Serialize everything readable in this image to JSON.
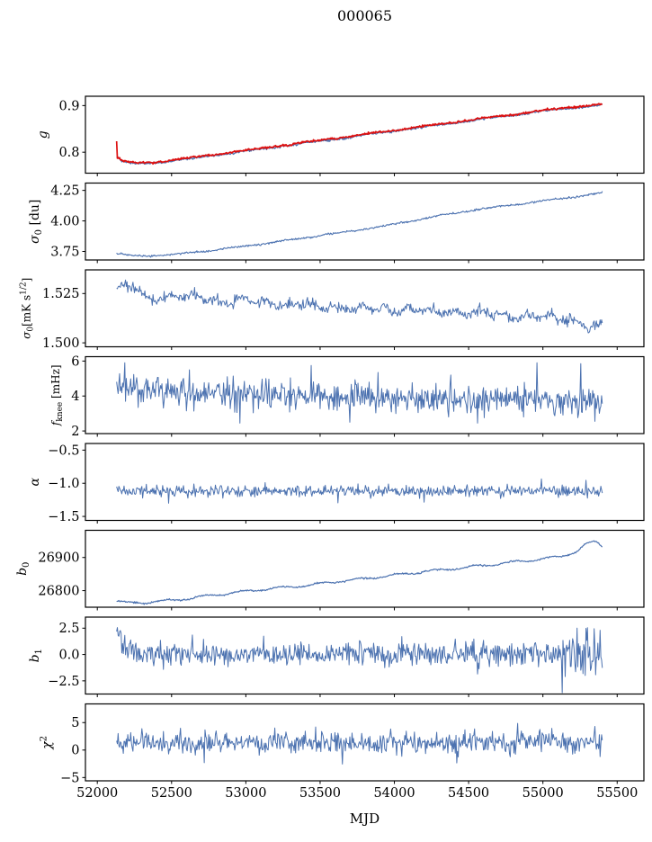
{
  "chart_data": {
    "type": "line",
    "title": "000065",
    "xlabel": "MJD",
    "xlim": [
      51920,
      55680
    ],
    "x_data_range": [
      52130,
      55400
    ],
    "x_ticks": [
      {
        "v": 52000,
        "l": "52000"
      },
      {
        "v": 52500,
        "l": "52500"
      },
      {
        "v": 53000,
        "l": "53000"
      },
      {
        "v": 53500,
        "l": "53500"
      },
      {
        "v": 54000,
        "l": "54000"
      },
      {
        "v": 54500,
        "l": "54500"
      },
      {
        "v": 55000,
        "l": "55000"
      },
      {
        "v": 55500,
        "l": "55500"
      }
    ],
    "colors": {
      "line": "#4c72b0",
      "overlay": "#dd1010",
      "axis": "#000000"
    },
    "panels": [
      {
        "name": "g",
        "ylabel": [
          {
            "t": "g",
            "i": true
          }
        ],
        "ylim": [
          0.755,
          0.92
        ],
        "yticks": [
          {
            "v": 0.8,
            "l": "0.8"
          },
          {
            "v": 0.9,
            "l": "0.9"
          }
        ],
        "series": [
          {
            "color": "line",
            "width": 1.3,
            "noise_std": 0.0012,
            "offset": -0.0008,
            "wave": {
              "amp": 0.0008,
              "period": 400
            },
            "trend": [
              [
                52130,
                0.7905
              ],
              [
                52170,
                0.78
              ],
              [
                52260,
                0.7758
              ],
              [
                52400,
                0.7778
              ],
              [
                52600,
                0.786
              ],
              [
                52900,
                0.799
              ],
              [
                53200,
                0.8118
              ],
              [
                53500,
                0.8246
              ],
              [
                53800,
                0.8376
              ],
              [
                54100,
                0.8505
              ],
              [
                54400,
                0.8633
              ],
              [
                54700,
                0.8762
              ],
              [
                55000,
                0.889
              ],
              [
                55200,
                0.896
              ],
              [
                55400,
                0.902
              ]
            ]
          },
          {
            "color": "overlay",
            "width": 1.7,
            "noise_std": 0.0011,
            "offset": 0.0008,
            "wave": {
              "amp": 0.0008,
              "period": 400
            },
            "spikes": [
              [
                52130,
                0.8235
              ],
              [
                52136,
                0.787
              ]
            ],
            "trend": [
              [
                52130,
                0.7905
              ],
              [
                52170,
                0.78
              ],
              [
                52260,
                0.7758
              ],
              [
                52400,
                0.7778
              ],
              [
                52600,
                0.786
              ],
              [
                52900,
                0.799
              ],
              [
                53200,
                0.8118
              ],
              [
                53500,
                0.8246
              ],
              [
                53800,
                0.8376
              ],
              [
                54100,
                0.8505
              ],
              [
                54400,
                0.8633
              ],
              [
                54700,
                0.8762
              ],
              [
                55000,
                0.889
              ],
              [
                55200,
                0.896
              ],
              [
                55400,
                0.902
              ]
            ]
          }
        ]
      },
      {
        "name": "sigma0_du",
        "ylabel": [
          {
            "t": "σ",
            "i": true
          },
          {
            "t": "0",
            "sub": true
          },
          {
            "t": " [du]"
          }
        ],
        "ylim": [
          3.68,
          4.31
        ],
        "yticks": [
          {
            "v": 3.75,
            "l": "3.75"
          },
          {
            "v": 4.0,
            "l": "4.00"
          },
          {
            "v": 4.25,
            "l": "4.25"
          }
        ],
        "series": [
          {
            "color": "line",
            "width": 1.1,
            "noise_std": 0.004,
            "wave": {
              "amp": 0.003,
              "period": 350
            },
            "trend": [
              [
                52130,
                3.733
              ],
              [
                52200,
                3.719
              ],
              [
                52330,
                3.7135
              ],
              [
                52500,
                3.7235
              ],
              [
                52800,
                3.7625
              ],
              [
                53100,
                3.8105
              ],
              [
                53400,
                3.8625
              ],
              [
                53700,
                3.9155
              ],
              [
                54000,
                3.9725
              ],
              [
                54300,
                4.043
              ],
              [
                54600,
                4.1
              ],
              [
                54900,
                4.148
              ],
              [
                55150,
                4.188
              ],
              [
                55300,
                4.211
              ],
              [
                55400,
                4.23
              ]
            ]
          }
        ]
      },
      {
        "name": "sigma0_mK",
        "ylabel": [
          {
            "t": "σ",
            "i": true
          },
          {
            "t": "0",
            "sub": true
          },
          {
            "t": "[mK s"
          },
          {
            "t": "1/2",
            "sup": true
          },
          {
            "t": "]"
          }
        ],
        "ylim": [
          1.498,
          1.537
        ],
        "yticks": [
          {
            "v": 1.5,
            "l": "1.500"
          },
          {
            "v": 1.525,
            "l": "1.525"
          }
        ],
        "series": [
          {
            "color": "line",
            "width": 1.0,
            "noise_std": 0.0013,
            "wave": {
              "amp": 0.0012,
              "period": 160
            },
            "trend": [
              [
                52130,
                1.527
              ],
              [
                52200,
                1.5288
              ],
              [
                52270,
                1.5282
              ],
              [
                52330,
                1.5222
              ],
              [
                52480,
                1.523
              ],
              [
                52650,
                1.5242
              ],
              [
                52830,
                1.52
              ],
              [
                53000,
                1.5222
              ],
              [
                53200,
                1.5192
              ],
              [
                53400,
                1.52
              ],
              [
                53600,
                1.517
              ],
              [
                53800,
                1.5182
              ],
              [
                54000,
                1.5158
              ],
              [
                54200,
                1.5172
              ],
              [
                54400,
                1.5148
              ],
              [
                54600,
                1.5158
              ],
              [
                54800,
                1.5128
              ],
              [
                55000,
                1.514
              ],
              [
                55150,
                1.5118
              ],
              [
                55280,
                1.5088
              ],
              [
                55350,
                1.5072
              ],
              [
                55400,
                1.509
              ]
            ]
          }
        ]
      },
      {
        "name": "f_knee",
        "ylabel": [
          {
            "t": "f",
            "i": true
          },
          {
            "t": "knee",
            "sub": true
          },
          {
            "t": " [mHz]"
          }
        ],
        "ylim": [
          1.85,
          6.25
        ],
        "yticks": [
          {
            "v": 2,
            "l": "2"
          },
          {
            "v": 4,
            "l": "4"
          },
          {
            "v": 6,
            "l": "6"
          }
        ],
        "series": [
          {
            "color": "line",
            "width": 1.0,
            "noise_std": 0.4,
            "spikes": [
              [
                52185,
                5.9
              ],
              [
                52620,
                5.5
              ],
              [
                53440,
                5.75
              ],
              [
                53890,
                5.35
              ],
              [
                54380,
                5.2
              ],
              [
                54960,
                5.9
              ],
              [
                55255,
                5.85
              ],
              [
                52960,
                2.45
              ],
              [
                53700,
                2.5
              ],
              [
                54560,
                2.45
              ],
              [
                55350,
                2.55
              ]
            ],
            "trend": [
              [
                52130,
                4.42
              ],
              [
                52500,
                4.22
              ],
              [
                53000,
                4.08
              ],
              [
                53500,
                3.95
              ],
              [
                54000,
                3.86
              ],
              [
                54500,
                3.8
              ],
              [
                55000,
                3.72
              ],
              [
                55400,
                3.62
              ]
            ]
          }
        ]
      },
      {
        "name": "alpha",
        "ylabel": [
          {
            "t": "α",
            "i": true
          }
        ],
        "ylim": [
          -1.56,
          -0.4
        ],
        "yticks": [
          {
            "v": -1.5,
            "l": "−1.5"
          },
          {
            "v": -1.0,
            "l": "−1.0"
          },
          {
            "v": -0.5,
            "l": "−0.5"
          }
        ],
        "series": [
          {
            "color": "line",
            "width": 1.0,
            "noise_std": 0.042,
            "spikes": [
              [
                52480,
                -1.3
              ],
              [
                53620,
                -1.295
              ],
              [
                54200,
                -1.285
              ],
              [
                54990,
                -0.935
              ],
              [
                55290,
                -0.955
              ],
              [
                53130,
                -0.99
              ]
            ],
            "trend": [
              [
                52130,
                -1.113
              ],
              [
                55400,
                -1.124
              ]
            ]
          }
        ]
      },
      {
        "name": "b0",
        "ylabel": [
          {
            "t": "b",
            "i": true
          },
          {
            "t": "0",
            "sub": true
          }
        ],
        "ylim": [
          26750,
          26982
        ],
        "yticks": [
          {
            "v": 26800,
            "l": "26800"
          },
          {
            "v": 26900,
            "l": "26900"
          }
        ],
        "series": [
          {
            "color": "line",
            "width": 1.2,
            "noise_std": 1.2,
            "wave": {
              "amp": 3,
              "period": 260
            },
            "trend": [
              [
                52130,
                26769
              ],
              [
                52200,
                26763
              ],
              [
                52360,
                26765
              ],
              [
                52550,
                26773
              ],
              [
                52800,
                26787
              ],
              [
                53000,
                26798
              ],
              [
                53180,
                26807
              ],
              [
                53400,
                26815
              ],
              [
                53600,
                26827
              ],
              [
                53800,
                26836
              ],
              [
                54000,
                26847
              ],
              [
                54200,
                26857
              ],
              [
                54400,
                26866
              ],
              [
                54600,
                26876
              ],
              [
                54800,
                26886
              ],
              [
                55000,
                26896
              ],
              [
                55120,
                26903
              ],
              [
                55220,
                26917
              ],
              [
                55290,
                26940
              ],
              [
                55340,
                26947
              ],
              [
                55370,
                26944
              ],
              [
                55400,
                26934
              ]
            ]
          }
        ]
      },
      {
        "name": "b1",
        "ylabel": [
          {
            "t": "b",
            "i": true
          },
          {
            "t": "1",
            "sub": true
          }
        ],
        "ylim": [
          -3.75,
          3.55
        ],
        "yticks": [
          {
            "v": -2.5,
            "l": "−2.5"
          },
          {
            "v": 0,
            "l": "0.0"
          },
          {
            "v": 2.5,
            "l": "2.5"
          }
        ],
        "series": [
          {
            "color": "line",
            "width": 1.0,
            "noise_std": 0.55,
            "noise_end": {
              "start": 55080,
              "std": 0.95
            },
            "spikes": [
              [
                55128,
                -3.62
              ],
              [
                55150,
                -2.1
              ],
              [
                54560,
                -1.85
              ],
              [
                55300,
                2.55
              ],
              [
                55345,
                2.45
              ],
              [
                55385,
                2.3
              ],
              [
                52640,
                1.85
              ],
              [
                53120,
                1.75
              ],
              [
                54050,
                1.7
              ]
            ],
            "trend": [
              [
                52130,
                2.55
              ],
              [
                52148,
                1.55
              ],
              [
                52170,
                0.85
              ],
              [
                52210,
                0.42
              ],
              [
                52280,
                0.14
              ],
              [
                52420,
                0.02
              ],
              [
                55400,
                0.04
              ]
            ]
          }
        ]
      },
      {
        "name": "chi2",
        "ylabel": [
          {
            "t": "χ",
            "i": true
          },
          {
            "t": "2",
            "sup": true
          }
        ],
        "ylim": [
          -5.6,
          8.4
        ],
        "yticks": [
          {
            "v": -5,
            "l": "−5"
          },
          {
            "v": 0,
            "l": "0"
          },
          {
            "v": 5,
            "l": "5"
          }
        ],
        "series": [
          {
            "color": "line",
            "width": 1.0,
            "noise_std": 1.02,
            "spikes": [
              [
                53470,
                4.2
              ],
              [
                54830,
                4.85
              ],
              [
                55350,
                4.3
              ],
              [
                52300,
                3.9
              ],
              [
                52720,
                -2.3
              ],
              [
                53650,
                -2.55
              ],
              [
                54420,
                -2.35
              ],
              [
                55060,
                3.95
              ]
            ],
            "trend": [
              [
                52130,
                1.32
              ],
              [
                55400,
                1.45
              ]
            ]
          }
        ]
      }
    ]
  }
}
